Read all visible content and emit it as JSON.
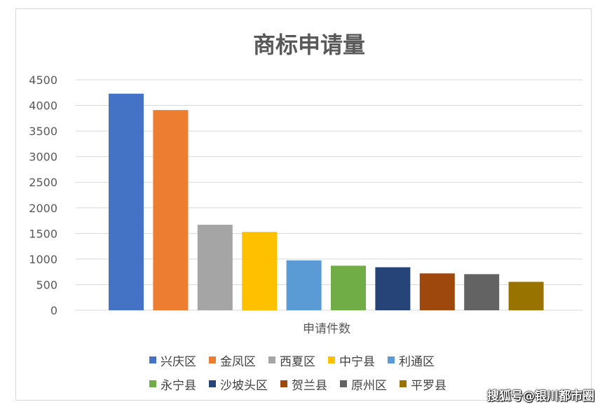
{
  "chart_data": {
    "type": "bar",
    "title": "商标申请量",
    "xlabel": "申请件数",
    "ylabel": "",
    "ylim": [
      0,
      4500
    ],
    "yticks": [
      0,
      500,
      1000,
      1500,
      2000,
      2500,
      3000,
      3500,
      4000,
      4500
    ],
    "grid": true,
    "legend_position": "bottom",
    "series": [
      {
        "name": "兴庆区",
        "value": 4230,
        "color": "#4472C4"
      },
      {
        "name": "金凤区",
        "value": 3910,
        "color": "#ED7D31"
      },
      {
        "name": "西夏区",
        "value": 1670,
        "color": "#A5A5A5"
      },
      {
        "name": "中宁县",
        "value": 1530,
        "color": "#FFC000"
      },
      {
        "name": "利通区",
        "value": 975,
        "color": "#5B9BD5"
      },
      {
        "name": "永宁县",
        "value": 870,
        "color": "#70AD47"
      },
      {
        "name": "沙坡头区",
        "value": 840,
        "color": "#264478"
      },
      {
        "name": "贺兰县",
        "value": 720,
        "color": "#9E480E"
      },
      {
        "name": "原州区",
        "value": 705,
        "color": "#636363"
      },
      {
        "name": "平罗县",
        "value": 555,
        "color": "#997300"
      }
    ]
  },
  "watermark": "搜狐号@银川都市圈"
}
